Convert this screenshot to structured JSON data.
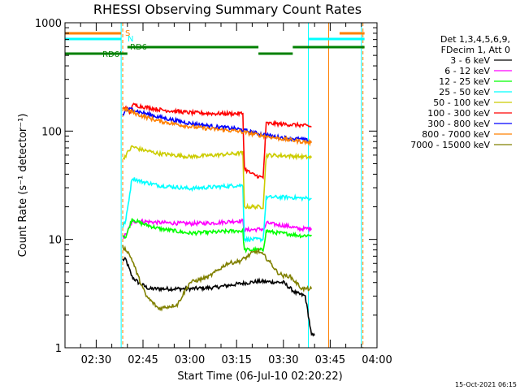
{
  "chart_data": {
    "type": "line",
    "title": "RHESSI Observing Summary Count Rates",
    "xlabel": "Start Time (06-Jul-10 02:20:22)",
    "ylabel": "Count Rate (s⁻¹ detector⁻¹)",
    "yscale": "log",
    "ylim": [
      1,
      1000
    ],
    "xlim_min_after_0220": [
      0,
      100
    ],
    "y_ticks": [
      {
        "value": 1,
        "label": "1"
      },
      {
        "value": 10,
        "label": "10"
      },
      {
        "value": 100,
        "label": "100"
      },
      {
        "value": 1000,
        "label": "1000"
      }
    ],
    "x_ticks": [
      {
        "t": 10,
        "label": "02:30"
      },
      {
        "t": 25,
        "label": "02:45"
      },
      {
        "t": 40,
        "label": "03:00"
      },
      {
        "t": 55,
        "label": "03:15"
      },
      {
        "t": 70,
        "label": "03:30"
      },
      {
        "t": 85,
        "label": "03:45"
      },
      {
        "t": 100,
        "label": "04:00"
      }
    ],
    "legend_header": [
      "Det 1,3,4,5,6,9,",
      "FDecim 1, Att 0"
    ],
    "legend_position": "right",
    "series": [
      {
        "name": "3 - 6 keV",
        "color": "#000000",
        "points": [
          [
            18.5,
            6.5
          ],
          [
            19.5,
            6.5
          ],
          [
            21.5,
            4.5
          ],
          [
            23.5,
            4.0
          ],
          [
            27,
            3.5
          ],
          [
            33,
            3.5
          ],
          [
            40,
            3.5
          ],
          [
            48,
            3.6
          ],
          [
            56,
            3.9
          ],
          [
            62,
            4.1
          ],
          [
            70,
            4.0
          ],
          [
            74,
            3.2
          ],
          [
            77,
            3.0
          ],
          [
            78,
            2.0
          ],
          [
            79,
            1.3
          ],
          [
            80,
            1.3
          ]
        ]
      },
      {
        "name": "6 - 12 keV",
        "color": "#ff00ff",
        "points": [
          [
            18.5,
            10.5
          ],
          [
            19.5,
            11
          ],
          [
            21.5,
            14.5
          ],
          [
            24,
            14.8
          ],
          [
            30,
            14.3
          ],
          [
            40,
            14.0
          ],
          [
            48,
            14.2
          ],
          [
            55,
            14.8
          ],
          [
            57,
            14.8
          ],
          [
            57.5,
            12.2
          ],
          [
            62,
            12.4
          ],
          [
            64,
            12.5
          ],
          [
            64.5,
            14.2
          ],
          [
            67,
            13.8
          ],
          [
            72,
            13.2
          ],
          [
            75,
            12.5
          ],
          [
            78,
            12.6
          ],
          [
            79,
            12.6
          ]
        ]
      },
      {
        "name": "12 - 25 keV",
        "color": "#00ff00",
        "points": [
          [
            18.5,
            11
          ],
          [
            19.5,
            10.5
          ],
          [
            21.5,
            15.5
          ],
          [
            24,
            14.2
          ],
          [
            30,
            12.6
          ],
          [
            40,
            11.4
          ],
          [
            48,
            11.7
          ],
          [
            55,
            12.0
          ],
          [
            57,
            12.0
          ],
          [
            57.5,
            8.0
          ],
          [
            63.5,
            8.0
          ],
          [
            64.5,
            12.0
          ],
          [
            67,
            11.6
          ],
          [
            72,
            11.2
          ],
          [
            76,
            10.8
          ],
          [
            79,
            11.0
          ]
        ]
      },
      {
        "name": "25 - 50 keV",
        "color": "#00ffff",
        "points": [
          [
            18.5,
            13
          ],
          [
            19.5,
            15
          ],
          [
            21.5,
            37
          ],
          [
            24,
            34.5
          ],
          [
            30,
            31.5
          ],
          [
            40,
            29.5
          ],
          [
            48,
            30.5
          ],
          [
            55,
            31.5
          ],
          [
            57,
            31.5
          ],
          [
            57.5,
            10.0
          ],
          [
            63.5,
            10.0
          ],
          [
            64.5,
            24.5
          ],
          [
            72,
            24.5
          ],
          [
            76,
            24.0
          ],
          [
            79,
            24.0
          ]
        ]
      },
      {
        "name": "50 - 100 keV",
        "color": "#cccc00",
        "points": [
          [
            18.5,
            55
          ],
          [
            19.5,
            60
          ],
          [
            21.5,
            72
          ],
          [
            24,
            68
          ],
          [
            30,
            62
          ],
          [
            40,
            58
          ],
          [
            48,
            60
          ],
          [
            55,
            62
          ],
          [
            57,
            63
          ],
          [
            57.5,
            20
          ],
          [
            63.5,
            20
          ],
          [
            64.5,
            60
          ],
          [
            72,
            59
          ],
          [
            76,
            58
          ],
          [
            79,
            57
          ]
        ]
      },
      {
        "name": "100 - 300 keV",
        "color": "#ff0000",
        "points": [
          [
            18.5,
            160
          ],
          [
            19.5,
            168
          ],
          [
            21,
            145
          ],
          [
            21.5,
            175
          ],
          [
            24,
            170
          ],
          [
            30,
            158
          ],
          [
            40,
            148
          ],
          [
            48,
            145
          ],
          [
            55,
            145
          ],
          [
            57,
            145
          ],
          [
            57.5,
            45
          ],
          [
            60,
            40
          ],
          [
            63.5,
            37
          ],
          [
            64.5,
            118
          ],
          [
            72,
            115
          ],
          [
            76,
            113
          ],
          [
            79,
            110
          ]
        ]
      },
      {
        "name": "300 - 800 keV",
        "color": "#0000ff",
        "points": [
          [
            18.5,
            140
          ],
          [
            19.5,
            155
          ],
          [
            21.5,
            160
          ],
          [
            24,
            150
          ],
          [
            30,
            135
          ],
          [
            40,
            118
          ],
          [
            48,
            110
          ],
          [
            55,
            105
          ],
          [
            57,
            102
          ],
          [
            62,
            95
          ],
          [
            68,
            88
          ],
          [
            72,
            86
          ],
          [
            76,
            84
          ],
          [
            79,
            80
          ]
        ]
      },
      {
        "name": "800 - 7000 keV",
        "color": "#ff8000",
        "points": [
          [
            18.5,
            165
          ],
          [
            19.5,
            158
          ],
          [
            21.5,
            150
          ],
          [
            24,
            140
          ],
          [
            30,
            124
          ],
          [
            40,
            110
          ],
          [
            48,
            104
          ],
          [
            55,
            100
          ],
          [
            57,
            98
          ],
          [
            62,
            92
          ],
          [
            68,
            86
          ],
          [
            72,
            83
          ],
          [
            76,
            80
          ],
          [
            79,
            78
          ]
        ]
      },
      {
        "name": "7000 - 15000 keV",
        "color": "#808000",
        "points": [
          [
            18.5,
            8.5
          ],
          [
            20,
            7.8
          ],
          [
            21.5,
            6.5
          ],
          [
            23.5,
            4.5
          ],
          [
            26,
            3.0
          ],
          [
            30,
            2.3
          ],
          [
            36,
            2.5
          ],
          [
            40,
            4.0
          ],
          [
            46,
            4.5
          ],
          [
            52,
            6.0
          ],
          [
            56,
            6.3
          ],
          [
            58,
            6.8
          ],
          [
            60,
            7.5
          ],
          [
            62,
            7.8
          ],
          [
            64,
            7.0
          ],
          [
            66,
            6.0
          ],
          [
            68,
            5.0
          ],
          [
            70,
            4.6
          ],
          [
            72,
            4.6
          ],
          [
            76,
            3.5
          ],
          [
            79,
            3.5
          ]
        ]
      }
    ],
    "vlines": [
      {
        "t": 18,
        "color": "#00ffff"
      },
      {
        "t": 18.5,
        "color": "#ff8000",
        "style": "dashed"
      },
      {
        "t": 78,
        "color": "#00ffff"
      },
      {
        "t": 84.5,
        "color": "#ff8000"
      },
      {
        "t": 95,
        "color": "#00ffff"
      },
      {
        "t": 95.5,
        "color": "#ff8000",
        "style": "dashed"
      },
      {
        "t": 0,
        "color": "#00ffff"
      }
    ],
    "flags": [
      {
        "label": "S",
        "color": "#ff8000",
        "segments": [
          [
            0,
            18
          ],
          [
            88,
            96
          ]
        ]
      },
      {
        "label": "N",
        "color": "#00ffff",
        "segments": [
          [
            0,
            18
          ],
          [
            78,
            96
          ]
        ]
      },
      {
        "label": "RD6",
        "color": "#008000",
        "segments": [
          [
            20,
            62
          ],
          [
            73,
            96
          ]
        ]
      },
      {
        "label": "RD6'",
        "color": "#008000",
        "segments": [
          [
            0,
            20
          ],
          [
            62,
            73
          ]
        ]
      }
    ]
  },
  "stamp": "15-Oct-2021 06:15"
}
